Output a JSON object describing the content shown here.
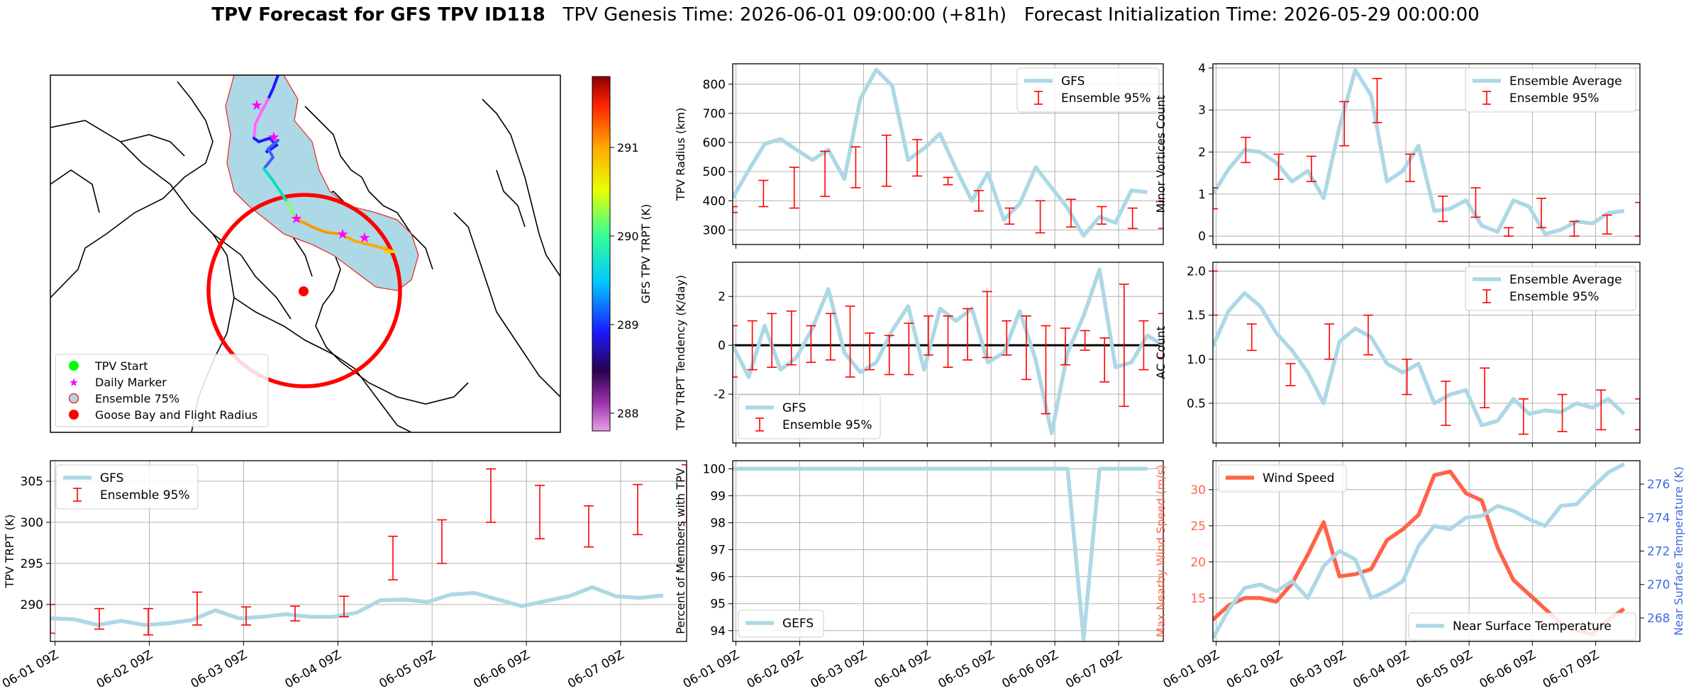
{
  "title": {
    "bold": "TPV Forecast for GFS TPV ID118",
    "genesis": "TPV Genesis Time: 2026-06-01 09:00:00 (+81h)",
    "init": "Forecast Initialization Time: 2026-05-29 00:00:00"
  },
  "colors": {
    "gfs_line": "#add8e6",
    "ensemble_bar": "#ff0000",
    "wind_line": "#ff6347",
    "wind_axis": "#ff6347",
    "temp_axis": "#4169e1",
    "flight_radius": "#ff0000",
    "ensemble_area": "#add8e6",
    "daily_marker": "#ff00ff",
    "tpv_start": "#00ff00"
  },
  "x_ticks": [
    "06-01 09Z",
    "06-02 09Z",
    "06-03 09Z",
    "06-04 09Z",
    "06-05 09Z",
    "06-06 09Z",
    "06-07 09Z"
  ],
  "map": {
    "legend": [
      "TPV Start",
      "Daily Marker",
      "Ensemble 75%",
      "Goose Bay and Flight Radius"
    ],
    "colorbar_label": "GFS TPV TRPT (K)",
    "colorbar_ticks": [
      "288",
      "289",
      "290",
      "291"
    ],
    "colorbar_range": [
      287.8,
      291.8
    ]
  },
  "chart_data": [
    {
      "id": "radius",
      "type": "line",
      "ylabel": "TPV Radius (km)",
      "ylim": [
        250,
        870
      ],
      "yticks": [
        300,
        400,
        500,
        600,
        700,
        800
      ],
      "legend": [
        "GFS",
        "Ensemble 95%"
      ],
      "legend_pos": "top-right",
      "series": [
        {
          "name": "GFS",
          "values": [
            410,
            505,
            595,
            612,
            575,
            540,
            575,
            475,
            750,
            850,
            795,
            540,
            580,
            630,
            510,
            400,
            495,
            335,
            390,
            515,
            445,
            375,
            280,
            345,
            325,
            435,
            430
          ]
        }
      ],
      "ensemble": [
        [
          360,
          380,
          375,
          415,
          445,
          450,
          485,
          455,
          365,
          320,
          290,
          310,
          320,
          305,
          305
        ],
        [
          380,
          470,
          515,
          570,
          585,
          625,
          610,
          480,
          435,
          375,
          400,
          405,
          380,
          375,
          400
        ]
      ]
    },
    {
      "id": "minor",
      "type": "line",
      "ylabel": "Minor Vortices Count",
      "ylim": [
        -0.2,
        4.1
      ],
      "yticks": [
        0,
        1,
        2,
        3,
        4
      ],
      "legend": [
        "Ensemble Average",
        "Ensemble 95%"
      ],
      "legend_pos": "top-right",
      "series": [
        {
          "name": "Ensemble Average",
          "values": [
            1.0,
            1.6,
            2.05,
            2.0,
            1.75,
            1.3,
            1.55,
            0.9,
            2.6,
            3.95,
            3.35,
            1.3,
            1.55,
            2.15,
            0.6,
            0.65,
            0.85,
            0.25,
            0.1,
            0.85,
            0.7,
            0.05,
            0.15,
            0.35,
            0.3,
            0.55,
            0.6
          ]
        }
      ],
      "ensemble": [
        [
          0.65,
          1.75,
          1.35,
          1.3,
          2.15,
          2.7,
          1.3,
          0.35,
          0.45,
          0.0,
          0.2,
          0.0,
          0.05,
          0.0
        ],
        [
          1.15,
          2.35,
          1.95,
          1.9,
          3.2,
          3.75,
          1.95,
          0.95,
          1.15,
          0.2,
          0.9,
          0.35,
          0.5,
          0.8
        ]
      ]
    },
    {
      "id": "tendency",
      "type": "line",
      "ylabel": "TPV TRPT Tendency (K/day)",
      "ylim": [
        -4.0,
        3.4
      ],
      "yticks": [
        -2,
        0,
        2
      ],
      "legend": [
        "GFS",
        "Ensemble 95%"
      ],
      "legend_pos": "bottom-left",
      "series": [
        {
          "name": "GFS",
          "values": [
            0.0,
            -1.3,
            0.8,
            -1.0,
            -0.5,
            0.7,
            2.3,
            -0.3,
            -1.1,
            -0.7,
            0.6,
            1.6,
            -1.0,
            1.5,
            1.0,
            1.5,
            -0.7,
            -0.3,
            1.4,
            -0.6,
            -3.6,
            -0.3,
            1.2,
            3.1,
            -0.9,
            -0.7,
            0.4,
            0.0
          ]
        }
      ],
      "ensemble": [
        [
          -1.3,
          -1.0,
          -0.9,
          -0.8,
          -0.7,
          -0.6,
          -1.3,
          -1.0,
          -1.2,
          -1.2,
          -0.4,
          -0.9,
          -0.6,
          -0.5,
          -0.4,
          -1.4,
          -2.8,
          -0.8,
          -0.2,
          -1.5,
          -2.5,
          -1.0,
          -0.5
        ],
        [
          0.8,
          1.0,
          1.3,
          1.4,
          0.8,
          1.3,
          1.6,
          0.5,
          0.4,
          0.9,
          1.2,
          1.2,
          1.5,
          2.2,
          1.0,
          1.2,
          0.8,
          0.7,
          0.6,
          0.3,
          2.5,
          1.0,
          1.3
        ]
      ]
    },
    {
      "id": "ac",
      "type": "line",
      "ylabel": "AC Count",
      "ylim": [
        0.05,
        2.1
      ],
      "yticks": [
        0.5,
        1.0,
        1.5,
        2.0
      ],
      "legend": [
        "Ensemble Average",
        "Ensemble 95%"
      ],
      "legend_pos": "top-right",
      "series": [
        {
          "name": "Ensemble Average",
          "values": [
            1.15,
            1.55,
            1.75,
            1.6,
            1.3,
            1.1,
            0.85,
            0.5,
            1.2,
            1.35,
            1.25,
            0.95,
            0.85,
            0.95,
            0.5,
            0.6,
            0.65,
            0.25,
            0.3,
            0.55,
            0.38,
            0.42,
            0.4,
            0.5,
            0.45,
            0.55,
            0.38
          ]
        }
      ],
      "ensemble": [
        [
          1.5,
          1.1,
          0.7,
          1.0,
          1.05,
          0.6,
          0.25,
          0.45,
          0.15,
          0.18,
          0.2,
          0.2
        ],
        [
          2.0,
          1.4,
          0.95,
          1.4,
          1.5,
          1.0,
          0.75,
          0.9,
          0.55,
          0.6,
          0.65,
          0.55
        ]
      ]
    },
    {
      "id": "trpt",
      "type": "line",
      "ylabel": "TPV TRPT (K)",
      "ylim": [
        285.5,
        307.5
      ],
      "yticks": [
        290,
        295,
        300,
        305
      ],
      "legend": [
        "GFS",
        "Ensemble 95%"
      ],
      "legend_pos": "top-left",
      "series": [
        {
          "name": "GFS",
          "values": [
            288.3,
            288.2,
            287.5,
            288.0,
            287.5,
            287.7,
            288.1,
            289.3,
            288.3,
            288.5,
            288.8,
            288.5,
            288.5,
            289.0,
            290.5,
            290.6,
            290.3,
            291.2,
            291.4,
            290.6,
            289.8,
            290.4,
            291.0,
            292.1,
            291.0,
            290.8,
            291.1
          ]
        }
      ],
      "ensemble": [
        [
          286.5,
          287.0,
          286.3,
          287.5,
          287.5,
          288.0,
          288.5,
          293.0,
          295.0,
          300.0,
          298.0,
          297.0,
          298.5,
          300.0
        ],
        [
          290.0,
          289.5,
          289.5,
          291.5,
          289.7,
          289.8,
          291.0,
          298.3,
          300.3,
          306.5,
          304.5,
          302.0,
          304.6,
          307.0
        ]
      ]
    },
    {
      "id": "percent",
      "type": "line",
      "ylabel": "Percent of Members with TPV",
      "ylim": [
        93.6,
        100.3
      ],
      "yticks": [
        94,
        95,
        96,
        97,
        98,
        99,
        100
      ],
      "legend": [
        "GEFS"
      ],
      "legend_pos": "bottom-left",
      "series": [
        {
          "name": "GEFS",
          "values": [
            100,
            100,
            100,
            100,
            100,
            100,
            100,
            100,
            100,
            100,
            100,
            100,
            100,
            100,
            100,
            100,
            100,
            100,
            100,
            100,
            100,
            100,
            93.7,
            100,
            100,
            100,
            100
          ]
        }
      ]
    },
    {
      "id": "wind_temp",
      "type": "line",
      "ylabel": "Max Nearby Wind Speed (m/s)",
      "y2label": "Near Surface Temperature (K)",
      "ylim": [
        9,
        34
      ],
      "yticks": [
        15,
        20,
        25,
        30
      ],
      "y2lim": [
        266.6,
        277.4
      ],
      "y2ticks": [
        268,
        270,
        272,
        274,
        276
      ],
      "legend": [
        "Wind Speed",
        "Near Surface Temperature"
      ],
      "series": [
        {
          "name": "Wind Speed",
          "axis": "left",
          "values": [
            12.0,
            14.0,
            15.0,
            15.0,
            14.5,
            17.0,
            21.0,
            25.5,
            18.0,
            18.3,
            19.0,
            23.0,
            24.5,
            26.5,
            32.0,
            32.5,
            29.5,
            28.5,
            22.0,
            17.5,
            15.5,
            13.5,
            11.5,
            10.5,
            10.0,
            12.0,
            13.5
          ]
        },
        {
          "name": "Near Surface Temperature",
          "axis": "right",
          "values": [
            266.8,
            268.5,
            269.8,
            270.0,
            269.6,
            270.2,
            269.2,
            271.1,
            272.0,
            271.5,
            269.2,
            269.6,
            270.2,
            272.3,
            273.5,
            273.3,
            274.0,
            274.1,
            274.7,
            274.4,
            273.9,
            273.5,
            274.7,
            274.8,
            275.8,
            276.7,
            277.2
          ]
        }
      ]
    }
  ]
}
